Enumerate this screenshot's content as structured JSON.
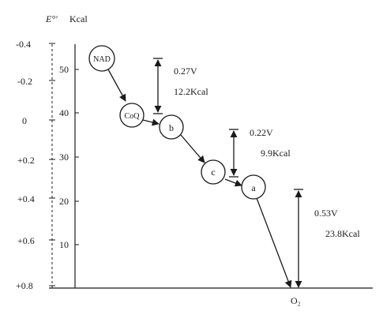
{
  "header": {
    "e_axis": "E°′",
    "kcal_axis": "Kcal"
  },
  "e_ticks": [
    "-0.4",
    "-0.2",
    "0",
    "+0.2",
    "+0.4",
    "+0.6",
    "+0.8"
  ],
  "kcal_ticks": [
    "50",
    "40",
    "30",
    "20",
    "10"
  ],
  "nodes": [
    {
      "id": "nad",
      "label": "NAD"
    },
    {
      "id": "coq",
      "label": "CoQ"
    },
    {
      "id": "b",
      "label": "b"
    },
    {
      "id": "c",
      "label": "c"
    },
    {
      "id": "a",
      "label": "a"
    },
    {
      "id": "o2",
      "label": "O₂"
    }
  ],
  "energy_steps": [
    {
      "voltage": "0.27V",
      "energy": "12.2Kcal"
    },
    {
      "voltage": "0.22V",
      "energy": "9.9Kcal"
    },
    {
      "voltage": "0.53V",
      "energy": "23.8Kcal"
    }
  ],
  "colors": {
    "ink": "#1a1a1a",
    "background": "#ffffff"
  }
}
